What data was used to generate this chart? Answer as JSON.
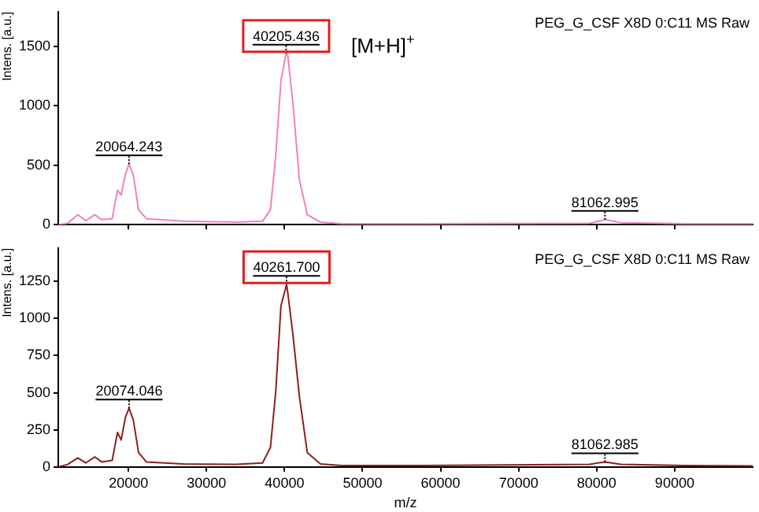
{
  "chart_data": [
    {
      "type": "line",
      "ylabel": "Intens. [a.u.]",
      "xlim": [
        11000,
        100000
      ],
      "xticks": [
        20000,
        30000,
        40000,
        50000,
        60000,
        70000,
        80000,
        90000
      ],
      "ylim": [
        0,
        1790
      ],
      "yticks": [
        0,
        500,
        1000,
        1500
      ],
      "tick_labels": "y",
      "grid": false,
      "legend": false,
      "marker": "none",
      "series": [
        {
          "color": "#f080c0",
          "x": [
            11000,
            12200,
            13500,
            14530,
            15680,
            16560,
            17910,
            18590,
            19060,
            19600,
            20064,
            20615,
            21290,
            22300,
            27040,
            33800,
            37180,
            38190,
            38870,
            39540,
            40205,
            40420,
            41100,
            41910,
            42920,
            44610,
            47320,
            57460,
            79090,
            81062,
            83140,
            91250,
            100000
          ],
          "values": [
            0,
            12,
            83,
            33,
            83,
            42,
            50,
            290,
            250,
            420,
            510,
            420,
            125,
            50,
            29,
            21,
            29,
            125,
            580,
            1210,
            1440,
            1420,
            1000,
            375,
            83,
            21,
            8,
            8,
            12,
            42,
            17,
            8,
            8
          ]
        }
      ],
      "annotations": [
        "PEG_G_CSF X8D 0:C11 MS Raw",
        "[M+H]$^{+}$",
        {
          "text": "20064.243",
          "x": 20064,
          "y": 510
        },
        {
          "text": "40205.436",
          "x": 40205,
          "y": 1440
        },
        {
          "text": "81062.995",
          "x": 81062,
          "y": 42
        }
      ]
    },
    {
      "type": "line",
      "ylabel": "Intens. [a.u.]",
      "xlabel": "m/z",
      "xlim": [
        11000,
        100000
      ],
      "xticks": [
        20000,
        30000,
        40000,
        50000,
        60000,
        70000,
        80000,
        90000
      ],
      "ylim": [
        0,
        1475
      ],
      "yticks": [
        0,
        250,
        500,
        750,
        1000,
        1250
      ],
      "grid": false,
      "legend": false,
      "marker": "none",
      "series": [
        {
          "color": "#8b2020",
          "x": [
            11000,
            12200,
            13500,
            14530,
            15680,
            16560,
            17910,
            18590,
            19060,
            19600,
            20074,
            20615,
            21290,
            22300,
            27040,
            33800,
            37180,
            38190,
            38870,
            39540,
            40261,
            40420,
            41100,
            41910,
            42920,
            44610,
            47320,
            57460,
            79090,
            81062,
            83140,
            91250,
            100000
          ],
          "values": [
            0,
            17,
            61,
            27,
            68,
            34,
            44,
            232,
            181,
            334,
            396,
            317,
            96,
            34,
            20,
            17,
            27,
            130,
            505,
            1085,
            1229,
            1171,
            880,
            471,
            96,
            20,
            10,
            10,
            17,
            34,
            17,
            10,
            7
          ]
        }
      ],
      "annotations": [
        "PEG_G_CSF X8D 0:C11 MS Raw",
        {
          "text": "20074.046",
          "x": 20074,
          "y": 396
        },
        {
          "text": "40261.700",
          "x": 40261,
          "y": 1229
        },
        {
          "text": "81062.985",
          "x": 81062,
          "y": 34
        }
      ]
    }
  ]
}
